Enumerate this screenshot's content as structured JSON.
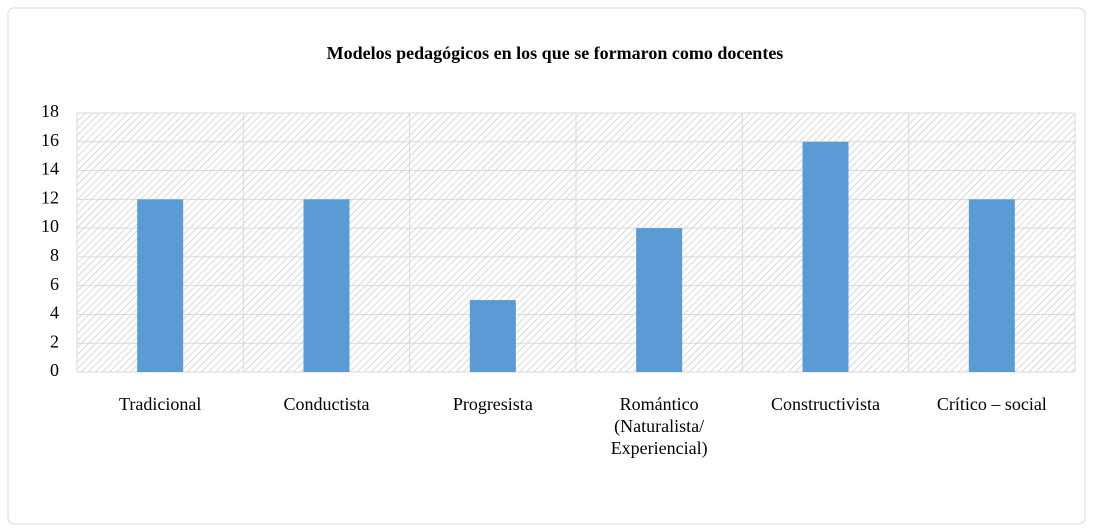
{
  "chart_data": {
    "type": "bar",
    "title": "Modelos pedagógicos en los que se formaron como docentes",
    "categories": [
      "Tradicional",
      "Conductista",
      "Progresista",
      "Romántico (Naturalista/ Experiencial)",
      "Constructivista",
      "Crítico – social"
    ],
    "values": [
      12,
      12,
      5,
      10,
      16,
      12
    ],
    "color": "#5b9bd5",
    "ylim": [
      0,
      18
    ],
    "yticks": [
      0,
      2,
      4,
      6,
      8,
      10,
      12,
      14,
      16,
      18
    ],
    "grid": true
  }
}
